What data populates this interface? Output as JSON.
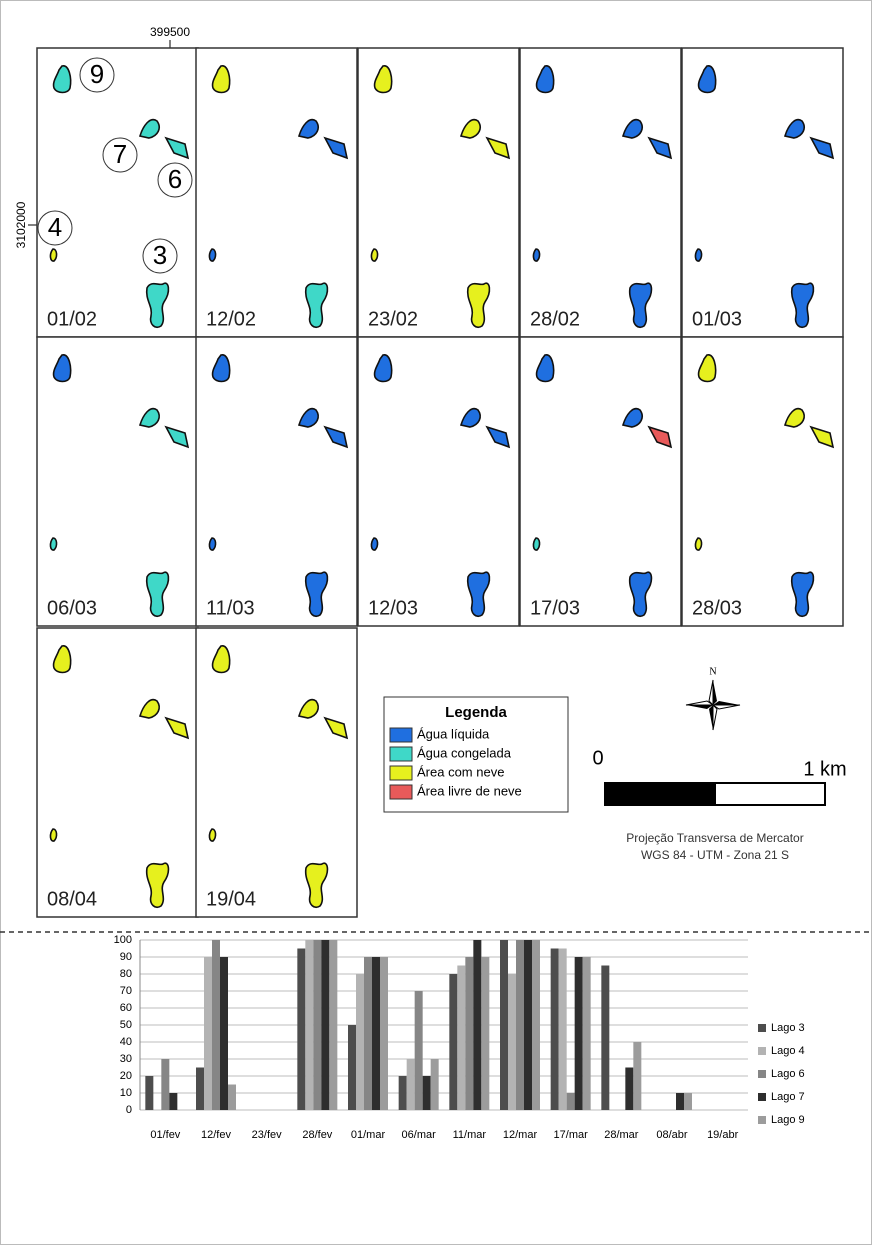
{
  "map": {
    "x_coordinate": "399500",
    "y_coordinate": "3102000",
    "lake_labels": [
      "9",
      "7",
      "6",
      "4",
      "3"
    ],
    "panels": [
      "01/02",
      "12/02",
      "23/02",
      "28/02",
      "01/03",
      "06/03",
      "11/03",
      "12/03",
      "17/03",
      "28/03",
      "08/04",
      "19/04"
    ],
    "legend": {
      "title": "Legenda",
      "items": [
        {
          "label": "Água líquida",
          "color": "#1f6fe0"
        },
        {
          "label": "Água congelada",
          "color": "#3fd8c8"
        },
        {
          "label": "Área com neve",
          "color": "#e6f01e"
        },
        {
          "label": "Área livre de neve",
          "color": "#e85a5a"
        }
      ]
    },
    "north": "N",
    "scale": {
      "start": "0",
      "end": "1 km"
    },
    "projection": [
      "Projeção Transversa de Mercator",
      "WGS 84 - UTM - Zona 21 S"
    ]
  },
  "chart_data": {
    "type": "bar",
    "categories": [
      "01/fev",
      "12/fev",
      "23/fev",
      "28/fev",
      "01/mar",
      "06/mar",
      "11/mar",
      "12/mar",
      "17/mar",
      "28/mar",
      "08/abr",
      "19/abr"
    ],
    "series": [
      {
        "name": "Lago 3",
        "color": "#4d4d4d",
        "values": [
          20,
          25,
          0,
          95,
          50,
          20,
          80,
          100,
          95,
          85,
          0,
          0
        ]
      },
      {
        "name": "Lago 4",
        "color": "#b3b3b3",
        "values": [
          0,
          90,
          0,
          100,
          80,
          30,
          85,
          80,
          95,
          0,
          0,
          0
        ]
      },
      {
        "name": "Lago 6",
        "color": "#868686",
        "values": [
          30,
          100,
          0,
          100,
          90,
          70,
          90,
          100,
          10,
          0,
          0,
          0
        ]
      },
      {
        "name": "Lago 7",
        "color": "#2e2e2e",
        "values": [
          10,
          90,
          0,
          100,
          90,
          20,
          100,
          100,
          90,
          25,
          10,
          0
        ]
      },
      {
        "name": "Lago 9",
        "color": "#9c9c9c",
        "values": [
          0,
          15,
          0,
          100,
          90,
          30,
          90,
          100,
          90,
          40,
          10,
          0
        ]
      }
    ],
    "ylim": [
      0,
      100
    ],
    "yticks": [
      0,
      10,
      20,
      30,
      40,
      50,
      60,
      70,
      80,
      90,
      100
    ],
    "grid": true,
    "legend": "right"
  }
}
